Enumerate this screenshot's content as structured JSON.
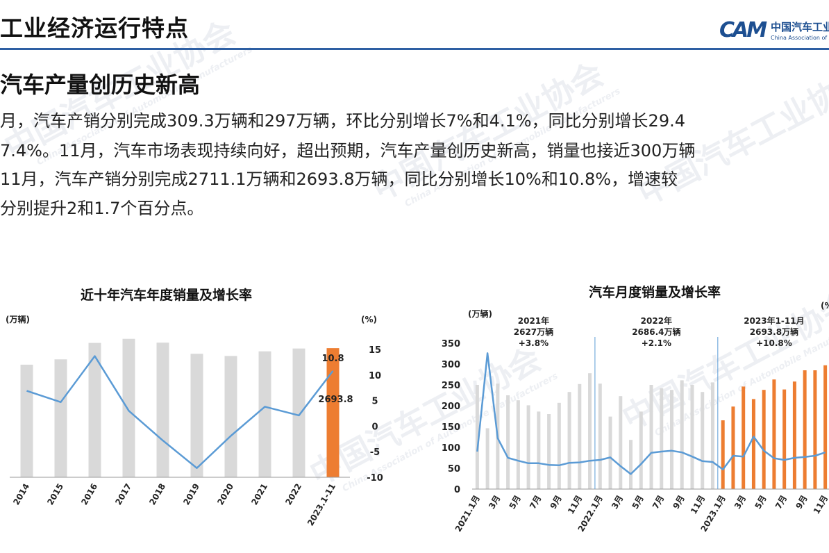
{
  "header": {
    "title": "工业经济运行特点",
    "logo_mark": "CAM",
    "logo_name_cn": "中国汽车工业协会",
    "logo_name_en": "China Association of Automobile Manufacturers"
  },
  "watermark": {
    "cn": "中国汽车工业协会",
    "en": "China Association of Automobile Manufacturers"
  },
  "section": {
    "heading": "汽车产量创历史新高",
    "paragraphs": [
      "月，汽车产销分别完成309.3万辆和297万辆，环比分别增长7%和4.1%，同比分别增长29.4",
      "7.4%。11月，汽车市场表现持续向好，超出预期，汽车产量创历史新高，销量也接近300万辆",
      "11月，汽车产销分别完成2711.1万辆和2693.8万辆，同比分别增长10%和10.8%，增速较",
      "分别提升2和1.7个百分点。"
    ]
  },
  "chart_data": [
    {
      "type": "bar",
      "title": "近十年汽车年度销量及增长率",
      "left_unit": "(万辆)",
      "right_unit": "(%)",
      "categories": [
        "2014",
        "2015",
        "2016",
        "2017",
        "2018",
        "2019",
        "2020",
        "2021",
        "2022",
        "2023.1-11"
      ],
      "values": [
        2349,
        2460,
        2803,
        2888,
        2808,
        2577,
        2531,
        2627,
        2686.4,
        2693.8
      ],
      "ylim": [
        0,
        3000
      ],
      "y2lim": [
        -10,
        15
      ],
      "y2_ticks": [
        "15",
        "10",
        "5",
        "0",
        "-5",
        "-10"
      ],
      "growth": [
        6.9,
        4.7,
        13.7,
        3.0,
        -2.8,
        -8.2,
        -1.9,
        3.8,
        2.1,
        10.8
      ],
      "bar_colors": {
        "default": "#d9d9d9",
        "highlight": "#ed7d31"
      },
      "line_color": "#5b9bd5",
      "labels": {
        "bar_last": "2693.8",
        "growth_last": "10.8"
      }
    },
    {
      "type": "bar",
      "title": "汽车月度销量及增长率",
      "left_unit": "(万辆)",
      "right_unit": "(%",
      "y_ticks": [
        "350",
        "300",
        "250",
        "200",
        "150",
        "100",
        "50",
        "0"
      ],
      "ylim": [
        0,
        350
      ],
      "x_labels": [
        "2021.1月",
        "3月",
        "5月",
        "7月",
        "9月",
        "11月",
        "2022.1月",
        "3月",
        "5月",
        "7月",
        "9月",
        "11月",
        "2023.1月",
        "3月",
        "5月",
        "7月",
        "9月",
        "11月"
      ],
      "groups": [
        {
          "label": "2021年\n2627万辆\n+3.8%",
          "values": [
            250,
            146,
            253,
            225,
            213,
            201,
            186,
            180,
            207,
            233,
            252,
            278
          ]
        },
        {
          "label": "2022年\n2686.4万辆\n+2.1%",
          "values": [
            253,
            174,
            223,
            118,
            186,
            250,
            242,
            238,
            261,
            250,
            233,
            256
          ]
        },
        {
          "label": "2023年1-11月\n2693.8万辆\n+10.8%",
          "values": [
            165,
            198,
            246,
            216,
            238,
            263,
            239,
            258,
            285,
            285,
            297
          ]
        }
      ],
      "line_values": [
        90,
        326,
        122,
        75,
        68,
        62,
        62,
        58,
        57,
        63,
        64,
        68,
        70,
        76,
        55,
        36,
        60,
        87,
        90,
        92,
        88,
        78,
        67,
        65,
        47,
        80,
        78,
        126,
        92,
        74,
        70,
        75,
        77,
        80,
        88
      ],
      "bar_colors": {
        "default": "#d9d9d9",
        "highlight": "#ed7d31"
      },
      "line_color": "#5b9bd5"
    }
  ]
}
